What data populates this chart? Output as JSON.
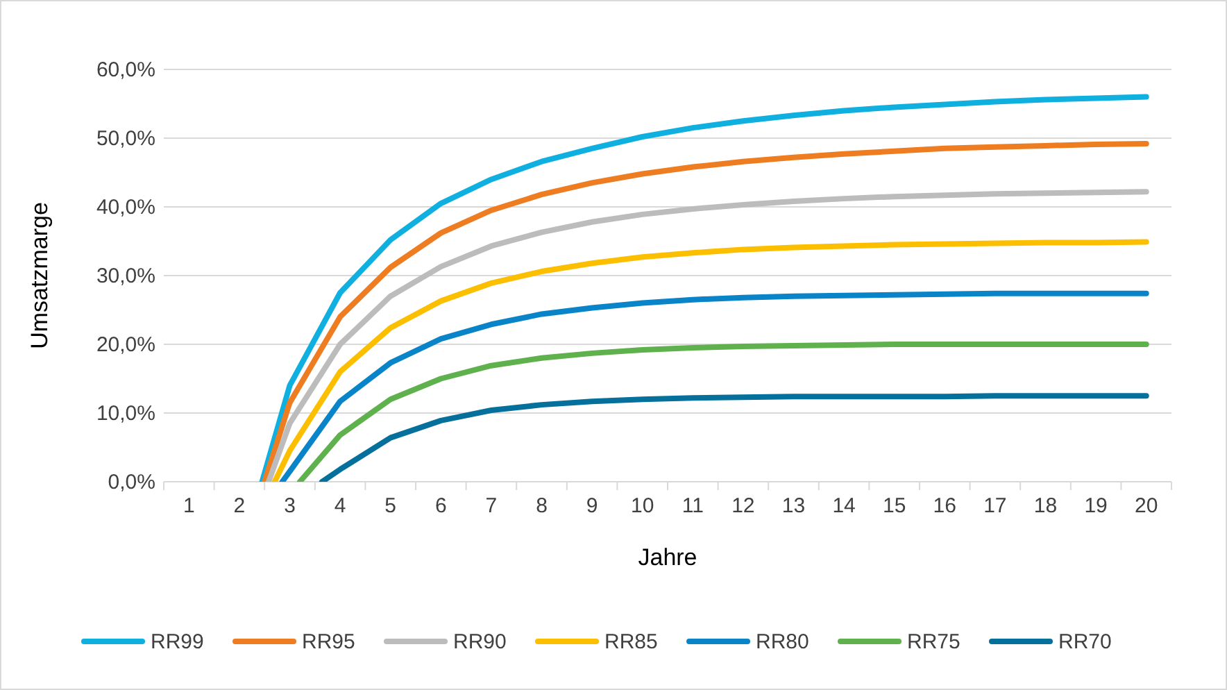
{
  "chart_data": {
    "type": "line",
    "xlabel": "Jahre",
    "ylabel": "Umsatzmarge",
    "xlim": [
      0.5,
      20.5
    ],
    "xticks": [
      1,
      2,
      3,
      4,
      5,
      6,
      7,
      8,
      9,
      10,
      11,
      12,
      13,
      14,
      15,
      16,
      17,
      18,
      19,
      20
    ],
    "ylim": [
      0,
      60
    ],
    "yticks": [
      {
        "value": 0,
        "label": "0,0%"
      },
      {
        "value": 10,
        "label": "10,0%"
      },
      {
        "value": 20,
        "label": "20,0%"
      },
      {
        "value": 30,
        "label": "30,0%"
      },
      {
        "value": 40,
        "label": "40,0%"
      },
      {
        "value": 50,
        "label": "50,0%"
      },
      {
        "value": 60,
        "label": "60,0%"
      }
    ],
    "grid": "y",
    "legend": "bottom",
    "marker": "none",
    "line_style": "solid",
    "series": [
      {
        "name": "RR99",
        "color": "#0fb0e0",
        "x": [
          2.45,
          3,
          4,
          5,
          6,
          7,
          8,
          9,
          10,
          11,
          12,
          13,
          14,
          15,
          16,
          17,
          18,
          19,
          20
        ],
        "values": [
          0,
          14,
          27.5,
          35.2,
          40.5,
          44,
          46.6,
          48.5,
          50.2,
          51.5,
          52.5,
          53.3,
          54,
          54.5,
          54.9,
          55.3,
          55.6,
          55.8,
          56
        ]
      },
      {
        "name": "RR95",
        "color": "#ee7d22",
        "x": [
          2.5,
          3,
          4,
          5,
          6,
          7,
          8,
          9,
          10,
          11,
          12,
          13,
          14,
          15,
          16,
          17,
          18,
          19,
          20
        ],
        "values": [
          0,
          11.5,
          24,
          31.2,
          36.2,
          39.5,
          41.8,
          43.5,
          44.8,
          45.8,
          46.6,
          47.2,
          47.7,
          48.1,
          48.5,
          48.7,
          48.9,
          49.1,
          49.2
        ]
      },
      {
        "name": "RR90",
        "color": "#bcbcbc",
        "x": [
          2.58,
          3,
          4,
          5,
          6,
          7,
          8,
          9,
          10,
          11,
          12,
          13,
          14,
          15,
          16,
          17,
          18,
          19,
          20
        ],
        "values": [
          0,
          8.5,
          20,
          27,
          31.3,
          34.3,
          36.3,
          37.8,
          38.9,
          39.7,
          40.3,
          40.8,
          41.2,
          41.5,
          41.7,
          41.9,
          42,
          42.1,
          42.2
        ]
      },
      {
        "name": "RR85",
        "color": "#fcbf00",
        "x": [
          2.7,
          3,
          4,
          5,
          6,
          7,
          8,
          9,
          10,
          11,
          12,
          13,
          14,
          15,
          16,
          17,
          18,
          19,
          20
        ],
        "values": [
          0,
          4.5,
          16,
          22.4,
          26.3,
          28.9,
          30.6,
          31.8,
          32.7,
          33.3,
          33.8,
          34.1,
          34.3,
          34.5,
          34.6,
          34.7,
          34.8,
          34.8,
          34.9
        ]
      },
      {
        "name": "RR80",
        "color": "#0a84c8",
        "x": [
          2.85,
          3,
          4,
          5,
          6,
          7,
          8,
          9,
          10,
          11,
          12,
          13,
          14,
          15,
          16,
          17,
          18,
          19,
          20
        ],
        "values": [
          0,
          1.5,
          11.7,
          17.3,
          20.8,
          22.9,
          24.4,
          25.3,
          26,
          26.5,
          26.8,
          27,
          27.1,
          27.2,
          27.3,
          27.4,
          27.4,
          27.4,
          27.4
        ]
      },
      {
        "name": "RR75",
        "color": "#5fb14e",
        "x": [
          3.2,
          4,
          5,
          6,
          7,
          8,
          9,
          10,
          11,
          12,
          13,
          14,
          15,
          16,
          17,
          18,
          19,
          20
        ],
        "values": [
          0,
          6.8,
          12,
          15,
          16.9,
          18,
          18.7,
          19.2,
          19.5,
          19.7,
          19.8,
          19.9,
          20,
          20,
          20,
          20,
          20,
          20
        ]
      },
      {
        "name": "RR70",
        "color": "#05709c",
        "x": [
          3.64,
          4,
          5,
          6,
          7,
          8,
          9,
          10,
          11,
          12,
          13,
          14,
          15,
          16,
          17,
          18,
          19,
          20
        ],
        "values": [
          0,
          1.8,
          6.4,
          8.9,
          10.4,
          11.2,
          11.7,
          12,
          12.2,
          12.3,
          12.4,
          12.4,
          12.4,
          12.4,
          12.5,
          12.5,
          12.5,
          12.5
        ]
      }
    ]
  }
}
